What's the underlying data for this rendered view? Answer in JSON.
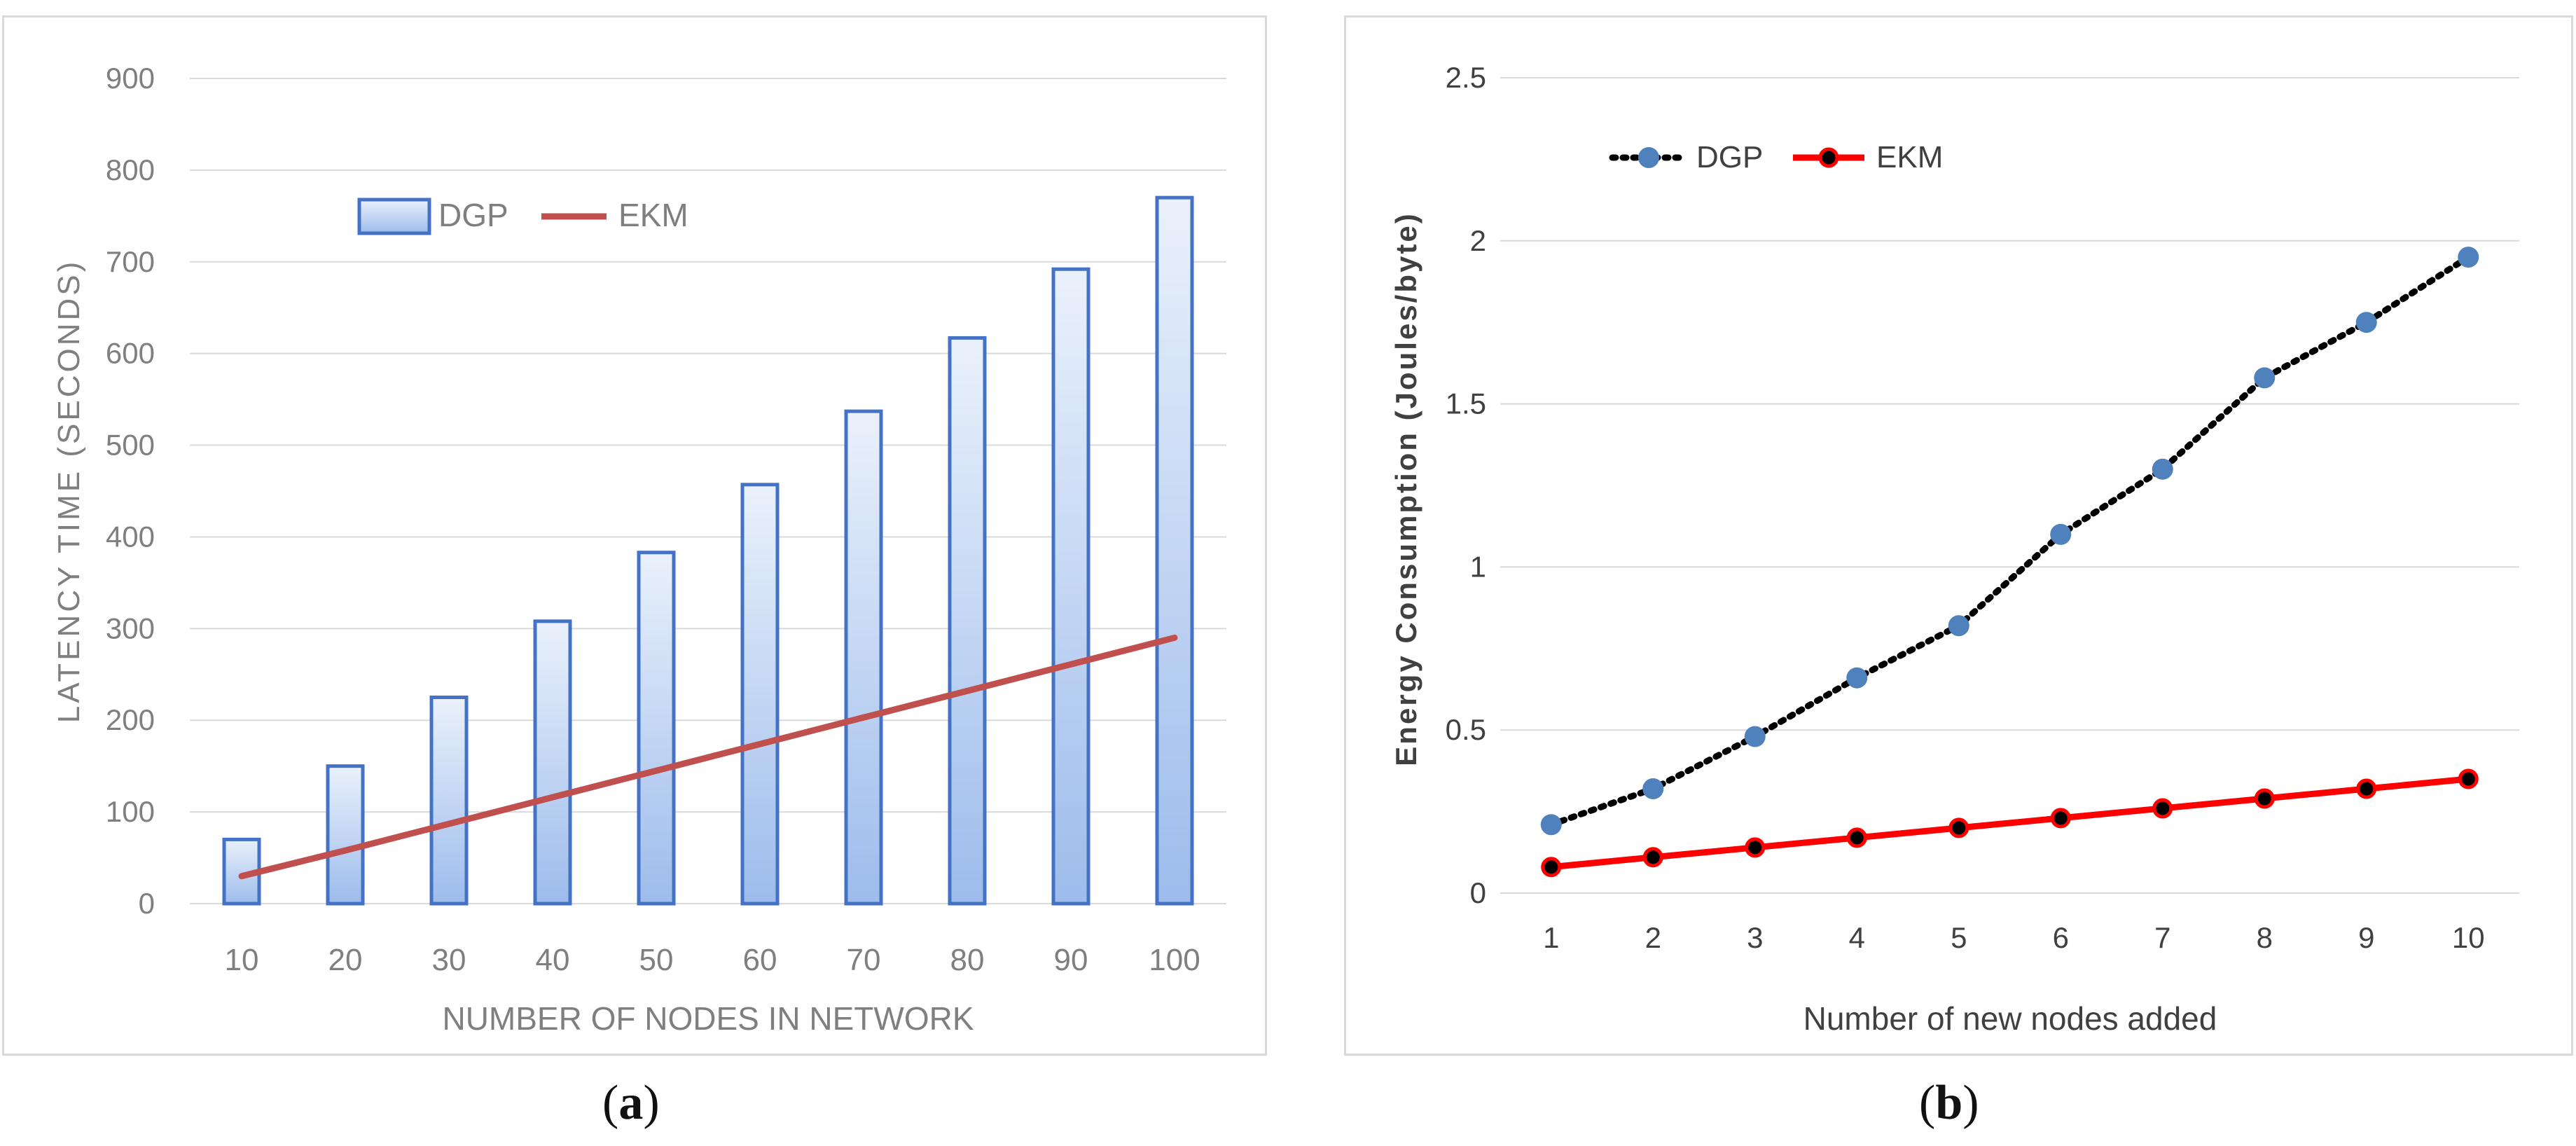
{
  "chart_data": [
    {
      "type": "bar",
      "panel_label": "a",
      "title": "",
      "xlabel": "NUMBER OF NODES IN NETWORK",
      "ylabel": "LATENCY TIME (SECONDS)",
      "categories": [
        "10",
        "20",
        "30",
        "40",
        "50",
        "60",
        "70",
        "80",
        "90",
        "100"
      ],
      "ylim": [
        0,
        900
      ],
      "yticks": [
        "0",
        "100",
        "200",
        "300",
        "400",
        "500",
        "600",
        "700",
        "800",
        "900"
      ],
      "grid": true,
      "legend_position": "top-left",
      "series": [
        {
          "name": "DGP",
          "kind": "bar",
          "color": "#4472c4",
          "values": [
            70,
            150,
            225,
            308,
            383,
            457,
            537,
            617,
            692,
            770
          ]
        },
        {
          "name": "EKM",
          "kind": "line",
          "color": "#c0504d",
          "values": [
            30,
            58,
            87,
            116,
            145,
            174,
            203,
            232,
            261,
            290
          ]
        }
      ]
    },
    {
      "type": "line",
      "panel_label": "b",
      "title": "",
      "xlabel": "Number of new nodes added",
      "ylabel": "Energy Consumption (Joules/byte)",
      "categories": [
        "1",
        "2",
        "3",
        "4",
        "5",
        "6",
        "7",
        "8",
        "9",
        "10"
      ],
      "ylim": [
        0,
        2.5
      ],
      "yticks": [
        "0",
        "0.5",
        "1",
        "1.5",
        "2",
        "2.5"
      ],
      "grid": true,
      "legend_position": "top-left",
      "series": [
        {
          "name": "DGP",
          "style": "dotted",
          "color": "#000000",
          "marker_color": "#4f81bd",
          "values": [
            0.21,
            0.32,
            0.48,
            0.66,
            0.82,
            1.1,
            1.3,
            1.58,
            1.75,
            1.95
          ]
        },
        {
          "name": "EKM",
          "style": "solid",
          "color": "#ff0000",
          "marker_color": "#000000",
          "values": [
            0.08,
            0.11,
            0.14,
            0.17,
            0.2,
            0.23,
            0.26,
            0.29,
            0.32,
            0.35
          ]
        }
      ]
    }
  ],
  "captions": {
    "a": "a",
    "b": "b"
  }
}
